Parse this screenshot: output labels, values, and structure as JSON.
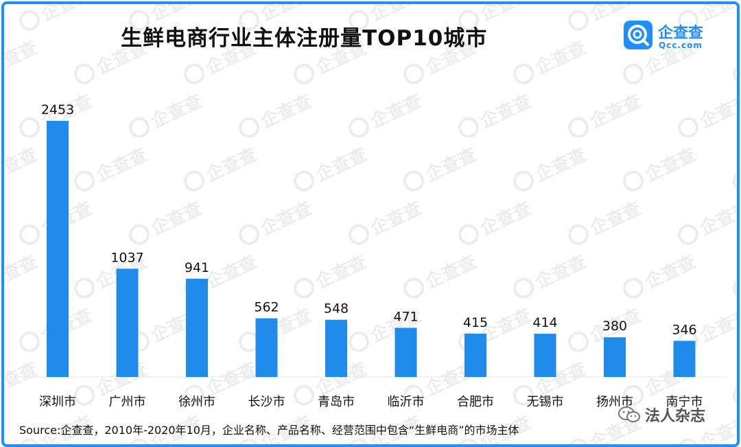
{
  "watermark_text": "企查查",
  "logo": {
    "name": "企查查",
    "url": "Qcc.com"
  },
  "chart_data": {
    "type": "bar",
    "title": "生鲜电商行业主体注册量TOP10城市",
    "categories": [
      "深圳市",
      "广州市",
      "徐州市",
      "长沙市",
      "青岛市",
      "临沂市",
      "合肥市",
      "无锡市",
      "扬州市",
      "南宁市"
    ],
    "values": [
      2453,
      1037,
      941,
      562,
      548,
      471,
      415,
      414,
      380,
      346
    ],
    "xlabel": "",
    "ylabel": "",
    "ylim": [
      0,
      2453
    ],
    "grid": false,
    "legend": "none",
    "bar_color": "#1f8ceb"
  },
  "source": "Source:企查查，2010年-2020年10月，企业名称、产品名称、经营范围中包含“生鲜电商”的市场主体",
  "credit": "法人杂志",
  "colors": {
    "accent": "#1f8fff",
    "bar": "#1f8ceb",
    "text": "#111111"
  }
}
